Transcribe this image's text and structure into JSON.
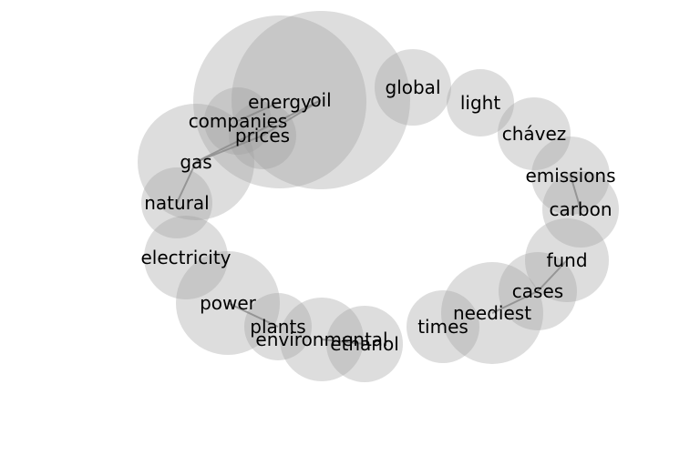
{
  "nodes": [
    {
      "id": "oil",
      "label": "oil"
    },
    {
      "id": "energy",
      "label": "energy"
    },
    {
      "id": "global",
      "label": "global"
    },
    {
      "id": "light",
      "label": "light"
    },
    {
      "id": "chavez",
      "label": "chávez"
    },
    {
      "id": "emissions",
      "label": "emissions"
    },
    {
      "id": "carbon",
      "label": "carbon"
    },
    {
      "id": "companies",
      "label": "companies"
    },
    {
      "id": "prices",
      "label": "prices"
    },
    {
      "id": "gas",
      "label": "gas"
    },
    {
      "id": "natural",
      "label": "natural"
    },
    {
      "id": "electricity",
      "label": "electricity"
    },
    {
      "id": "power",
      "label": "power"
    },
    {
      "id": "plants",
      "label": "plants"
    },
    {
      "id": "environmental",
      "label": "environmental"
    },
    {
      "id": "ethanol",
      "label": "ethanol"
    },
    {
      "id": "times",
      "label": "times"
    },
    {
      "id": "neediest",
      "label": "neediest"
    },
    {
      "id": "cases",
      "label": "cases"
    },
    {
      "id": "fund",
      "label": "fund"
    }
  ],
  "edges": [
    [
      "oil",
      "prices"
    ],
    [
      "oil",
      "gas"
    ],
    [
      "energy",
      "companies"
    ],
    [
      "gas",
      "natural"
    ],
    [
      "gas",
      "prices"
    ],
    [
      "emissions",
      "carbon"
    ],
    [
      "power",
      "plants"
    ],
    [
      "environmental",
      "ethanol"
    ],
    [
      "neediest",
      "cases"
    ],
    [
      "cases",
      "fund"
    ]
  ]
}
